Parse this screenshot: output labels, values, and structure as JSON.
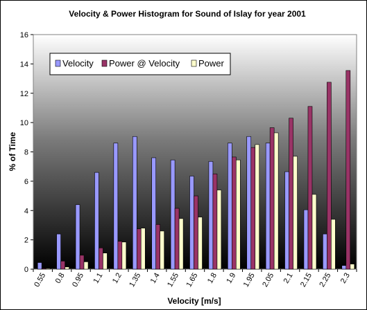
{
  "chart_data": {
    "type": "bar",
    "title": "Velocity & Power Histogram for Sound of Islay for year 2001",
    "xlabel": "Velocity [m/s]",
    "ylabel": "% of Time",
    "ylim": [
      0,
      16
    ],
    "yticks": [
      "0",
      "2",
      "4",
      "6",
      "8",
      "10",
      "12",
      "14",
      "16"
    ],
    "grid": false,
    "legend_position": "top-left",
    "categories": [
      "0.55",
      "0.8",
      "0.95",
      "1.1",
      "1.2",
      "1.35",
      "1.4",
      "1.55",
      "1.65",
      "1.8",
      "1.9",
      "1.95",
      "2.05",
      "2.1",
      "2.15",
      "2.25",
      "2.3"
    ],
    "series": [
      {
        "name": "Velocity",
        "color": "#9999ff",
        "values": [
          0.45,
          2.4,
          4.4,
          6.6,
          8.6,
          9.05,
          7.6,
          7.45,
          6.35,
          7.35,
          8.6,
          9.05,
          8.6,
          6.65,
          4.05,
          2.4,
          0.25
        ]
      },
      {
        "name": "Power @ Velocity",
        "color": "#993366",
        "values": [
          0.05,
          0.55,
          0.95,
          1.45,
          1.9,
          2.75,
          3.05,
          4.15,
          5.0,
          6.5,
          7.65,
          8.3,
          9.65,
          10.3,
          11.1,
          12.75,
          13.55
        ]
      },
      {
        "name": "Power",
        "color": "#ffffcc",
        "values": [
          0.05,
          0.15,
          0.5,
          1.1,
          1.85,
          2.8,
          2.6,
          3.45,
          3.55,
          5.4,
          7.45,
          8.5,
          9.3,
          7.7,
          5.1,
          3.4,
          0.35
        ]
      }
    ]
  }
}
